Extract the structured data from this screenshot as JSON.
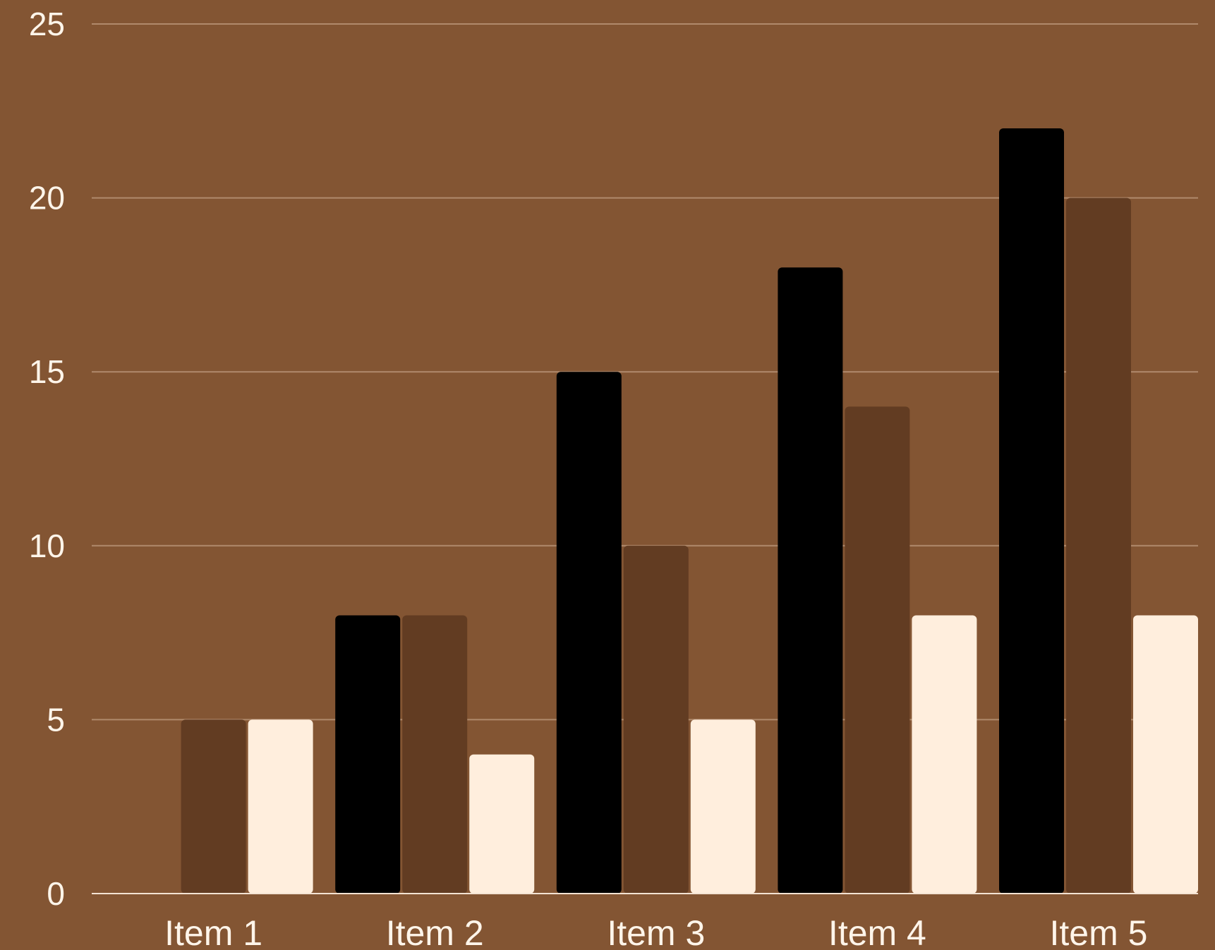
{
  "colors": {
    "background": "#835533",
    "grid": "#b08a6c",
    "baseline": "#f3e3d3",
    "text": "#fff5ea"
  },
  "chart_data": {
    "type": "bar",
    "title": "",
    "xlabel": "",
    "ylabel": "",
    "ylim": [
      0,
      25
    ],
    "yticks": [
      0,
      5,
      10,
      15,
      20,
      25
    ],
    "grid": true,
    "legend": "none",
    "categories": [
      "Item 1",
      "Item 2",
      "Item 3",
      "Item 4",
      "Item 5"
    ],
    "series": [
      {
        "color": "#000000",
        "values": [
          0,
          8,
          15,
          18,
          22
        ]
      },
      {
        "color": "#623c22",
        "values": [
          5,
          8,
          10,
          14,
          20
        ]
      },
      {
        "color": "#ffeedd",
        "values": [
          5,
          4,
          5,
          8,
          8
        ]
      }
    ]
  }
}
